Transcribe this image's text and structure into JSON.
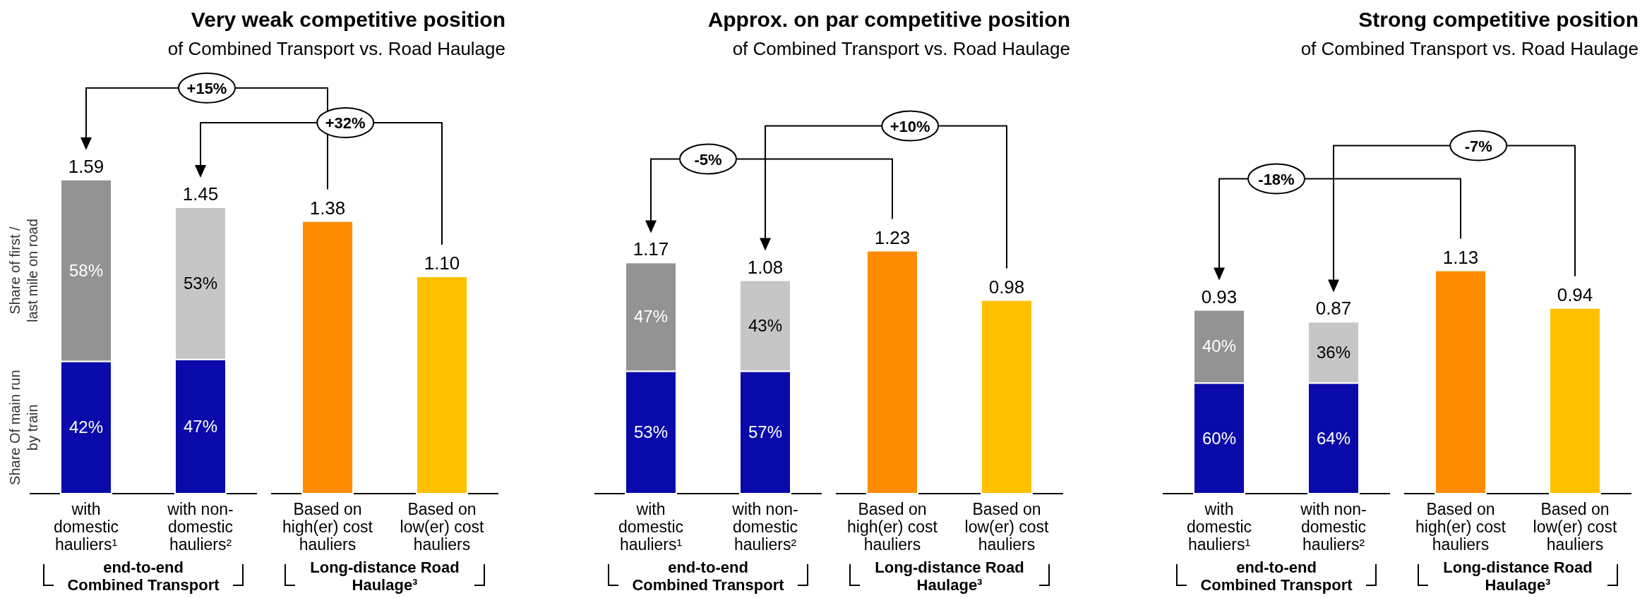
{
  "chart_data": [
    {
      "type": "bar",
      "title": "Very weak competitive position",
      "subtitle": "of Combined Transport vs. Road Haulage",
      "stacked": true,
      "categories": [
        "with\ndomestic\nhauliers¹",
        "with non-\ndomestic\nhauliers²",
        "Based on\nhigh(er) cost\nhauliers",
        "Based on\nlow(er) cost\nhauliers"
      ],
      "series": [
        {
          "name": "Share Of main run by train",
          "values": [
            0.67,
            0.68,
            null,
            null
          ],
          "colors": [
            "#0a0aaa",
            "#0a0aaa",
            null,
            null
          ]
        },
        {
          "name": "Share of first / last mile on road",
          "values": [
            0.92,
            0.77,
            null,
            null
          ],
          "colors": [
            "#939393",
            "#c6c6c6",
            null,
            null
          ]
        },
        {
          "values": [
            null,
            null,
            1.38,
            1.1
          ],
          "colors": [
            null,
            null,
            "#ff8c00",
            "#ffc000"
          ],
          "value_labels": [
            null,
            null,
            "1.38",
            "1.10"
          ]
        }
      ],
      "totals": [
        "1.59",
        "1.45",
        null,
        null
      ],
      "annotations": [
        "+15%",
        "+32%",
        "end-to-end\nCombined Transport",
        "Long-distance Road\nHaulage³",
        "42%",
        "58%",
        "47%",
        "53%"
      ]
    },
    {
      "type": "bar",
      "title": "Approx. on par competitive position",
      "subtitle": "of Combined Transport vs. Road Haulage",
      "stacked": true,
      "categories": [
        "with\ndomestic\nhauliers¹",
        "with non-\ndomestic\nhauliers²",
        "Based on\nhigh(er) cost\nhauliers",
        "Based on\nlow(er) cost\nhauliers"
      ],
      "series": [
        {
          "values": [
            0.62,
            0.62,
            null,
            null
          ],
          "colors": [
            "#0a0aaa",
            "#0a0aaa",
            null,
            null
          ]
        },
        {
          "values": [
            0.55,
            0.46,
            null,
            null
          ],
          "colors": [
            "#939393",
            "#c6c6c6",
            null,
            null
          ]
        },
        {
          "values": [
            null,
            null,
            1.23,
            0.98
          ],
          "colors": [
            null,
            null,
            "#ff8c00",
            "#ffc000"
          ],
          "value_labels": [
            null,
            null,
            "1.23",
            "0.98"
          ]
        }
      ],
      "totals": [
        "1.17",
        "1.08",
        null,
        null
      ],
      "annotations": [
        "-5%",
        "+10%",
        "end-to-end\nCombined Transport",
        "Long-distance Road\nHaulage³",
        "53%",
        "47%",
        "57%",
        "43%"
      ]
    },
    {
      "type": "bar",
      "title": "Strong competitive position",
      "subtitle": "of Combined Transport vs. Road Haulage",
      "stacked": true,
      "categories": [
        "with\ndomestic\nhauliers¹",
        "with non-\ndomestic\nhauliers²",
        "Based on\nhigh(er) cost\nhauliers",
        "Based on\nlow(er) cost\nhauliers"
      ],
      "series": [
        {
          "values": [
            0.56,
            0.56,
            null,
            null
          ],
          "colors": [
            "#0a0aaa",
            "#0a0aaa",
            null,
            null
          ]
        },
        {
          "values": [
            0.37,
            0.31,
            null,
            null
          ],
          "colors": [
            "#939393",
            "#c6c6c6",
            null,
            null
          ]
        },
        {
          "values": [
            null,
            null,
            1.13,
            0.94
          ],
          "colors": [
            null,
            null,
            "#ff8c00",
            "#ffc000"
          ],
          "value_labels": [
            null,
            null,
            "1.13",
            "0.94"
          ]
        }
      ],
      "totals": [
        "0.93",
        "0.87",
        null,
        null
      ],
      "annotations": [
        "-18%",
        "-7%",
        "end-to-end\nCombined Transport",
        "Long-distance Road\nHaulage³",
        "60%",
        "40%",
        "64%",
        "36%"
      ]
    }
  ]
}
